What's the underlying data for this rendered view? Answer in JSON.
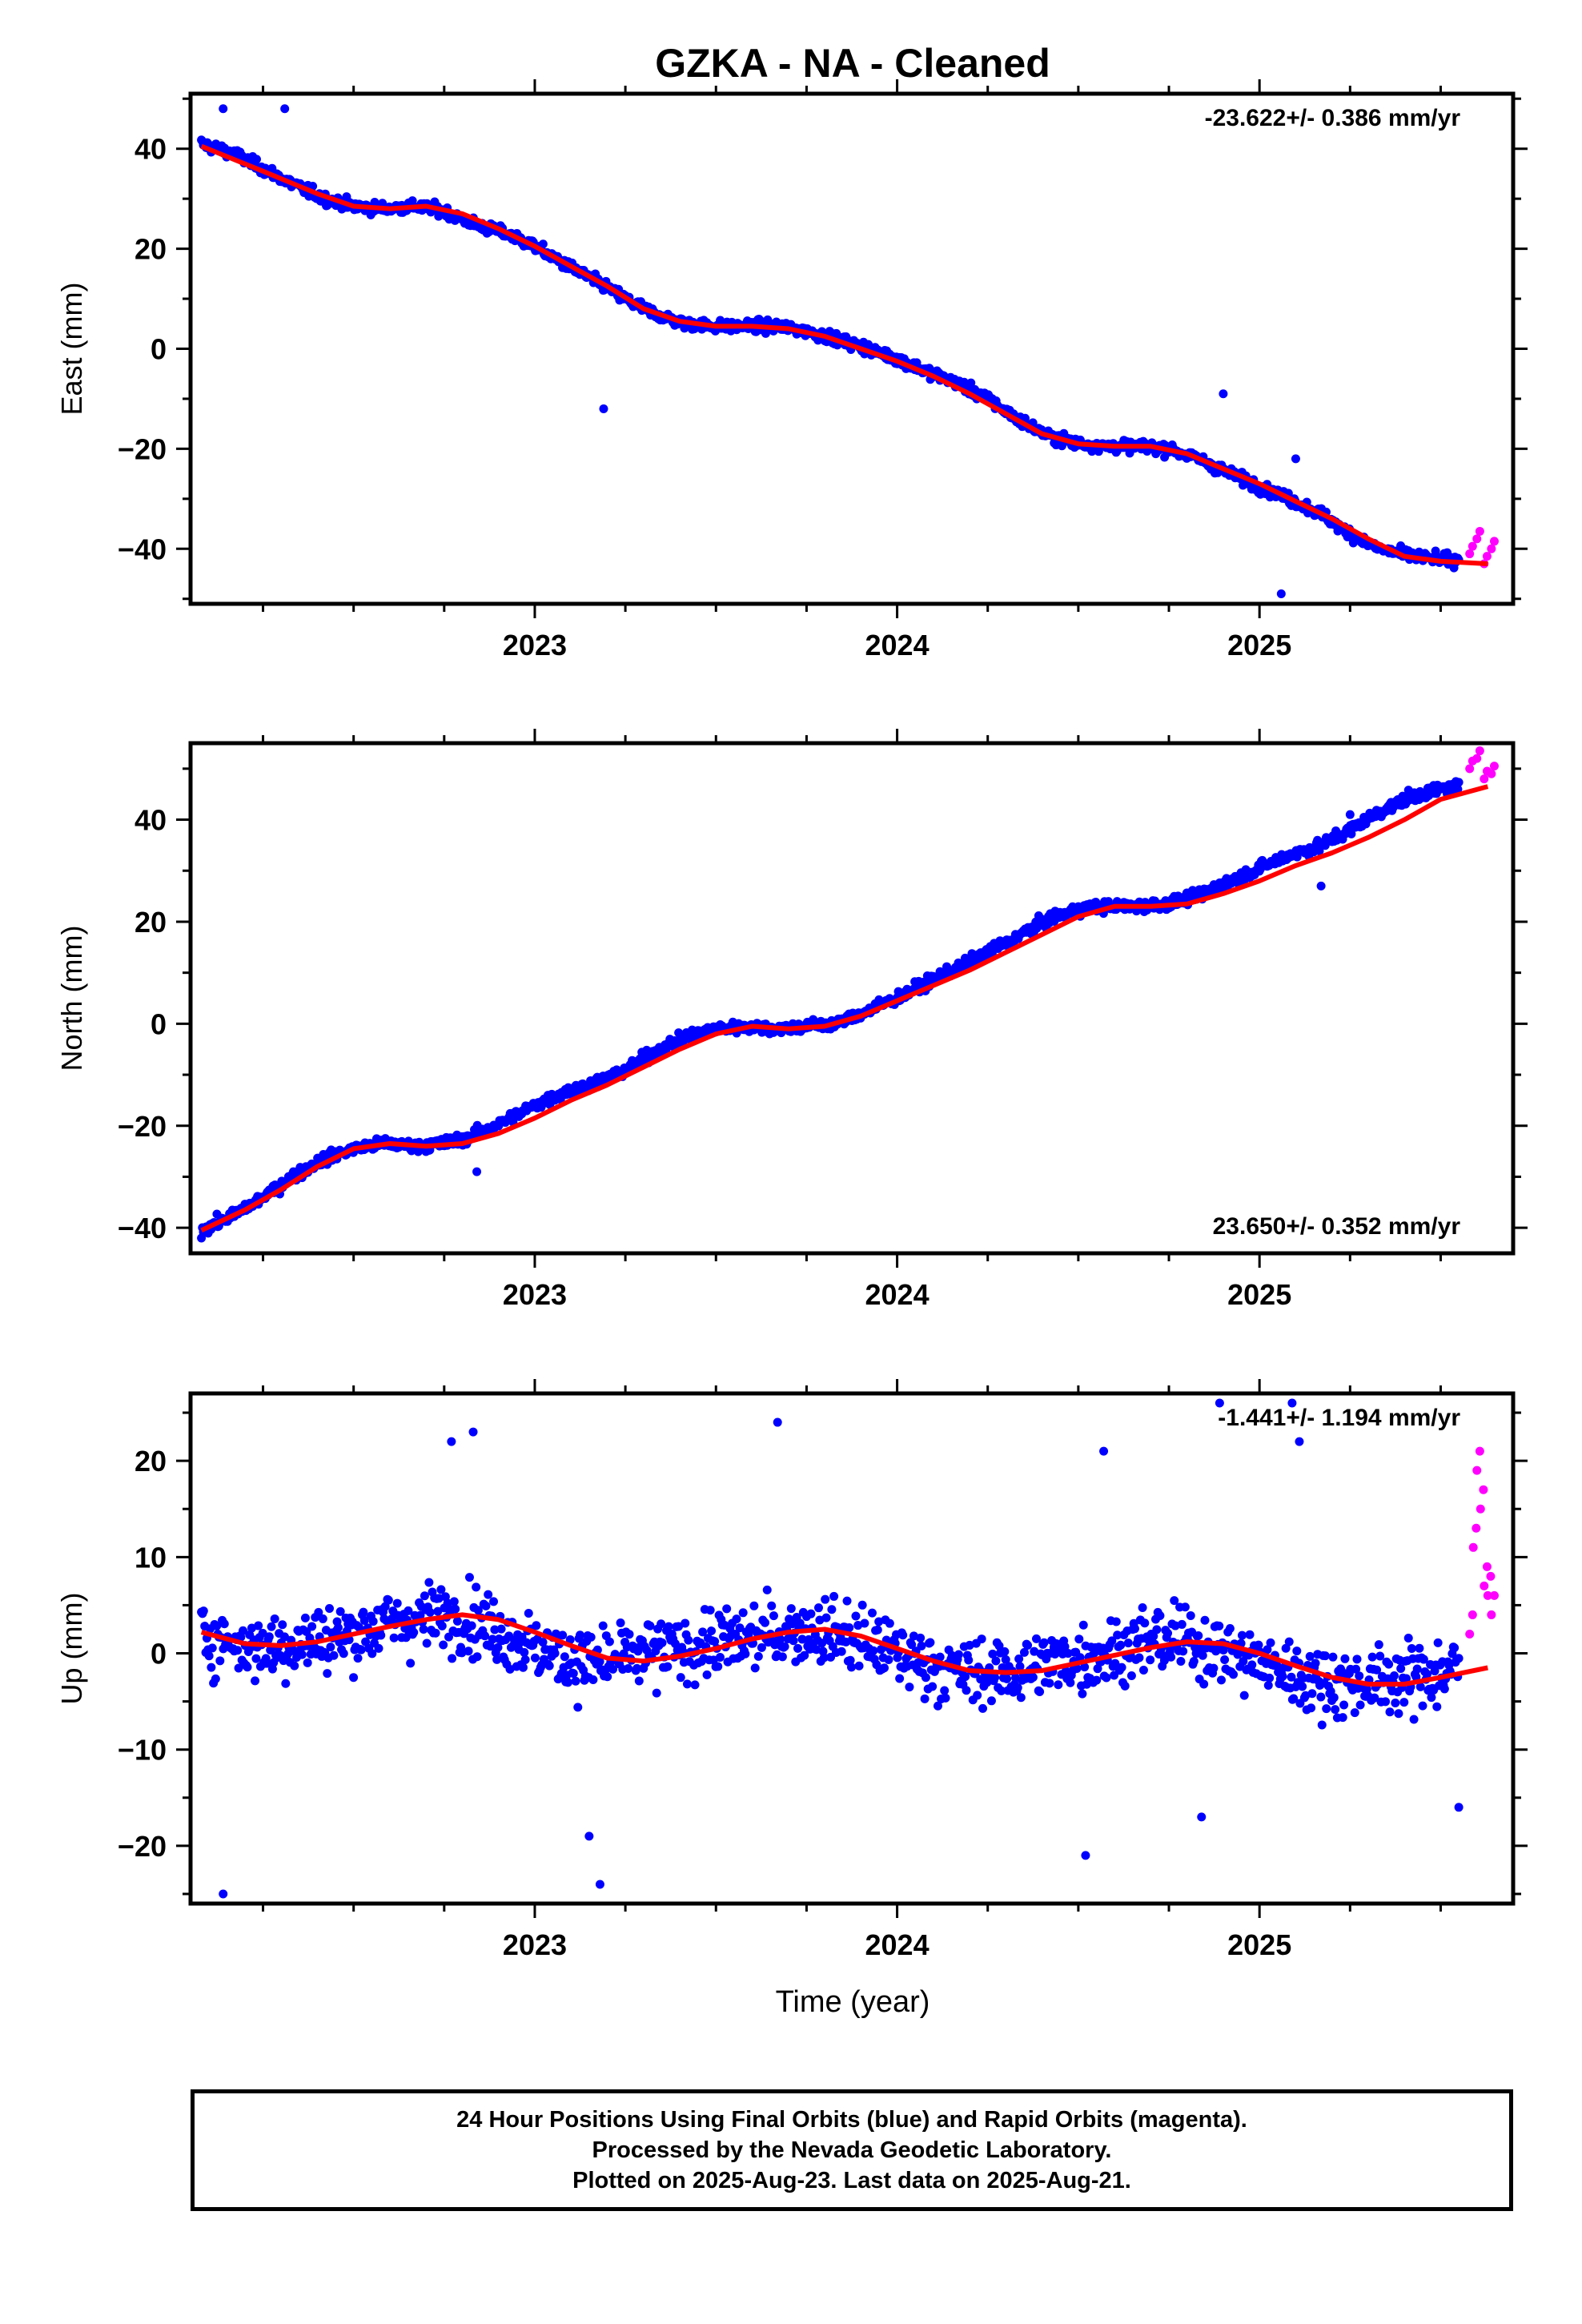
{
  "title": "GZKA  - NA - Cleaned",
  "x_axis_label": "Time (year)",
  "caption": {
    "line1": "24 Hour Positions Using Final Orbits (blue) and Rapid Orbits (magenta).",
    "line2": "Processed by the Nevada Geodetic Laboratory.",
    "line3": "Plotted on 2025-Aug-23. Last data on 2025-Aug-21."
  },
  "colors": {
    "final_orbits": "#0000ff",
    "rapid_orbits": "#ff00ff",
    "model": "#ff0000",
    "frame": "#000000"
  },
  "chart_data": [
    {
      "type": "scatter",
      "component": "east",
      "ylabel": "East (mm)",
      "rate": "-23.622+/- 0.386 mm/yr",
      "rate_position": "top-right",
      "xlim": [
        2022.05,
        2025.7
      ],
      "ylim": [
        -51,
        51
      ],
      "xticks": [
        2023,
        2024,
        2025
      ],
      "yticks": [
        -40,
        -20,
        0,
        20,
        40
      ],
      "grid": false,
      "series": [
        {
          "name": "Final Orbits",
          "color": "#0000ff",
          "x": [
            2022.08,
            2022.17,
            2022.25,
            2022.33,
            2022.42,
            2022.5,
            2022.58,
            2022.67,
            2022.75,
            2022.83,
            2022.92,
            2023.0,
            2023.08,
            2023.17,
            2023.25,
            2023.33,
            2023.42,
            2023.5,
            2023.58,
            2023.67,
            2023.75,
            2023.83,
            2023.92,
            2024.0,
            2024.08,
            2024.17,
            2024.25,
            2024.33,
            2024.42,
            2024.5,
            2024.58,
            2024.67,
            2024.75,
            2024.83,
            2024.92,
            2025.0,
            2025.08,
            2025.17,
            2025.25,
            2025.33,
            2025.42,
            2025.5,
            2025.55
          ],
          "y": [
            41,
            39,
            36,
            33,
            30,
            28.5,
            28,
            28.5,
            27.5,
            25,
            23,
            20.5,
            17,
            13.5,
            10,
            7,
            5,
            4.5,
            4.5,
            4.5,
            3.5,
            2,
            0,
            -2,
            -4.5,
            -7,
            -10,
            -14,
            -17.5,
            -19,
            -19.5,
            -19.5,
            -20,
            -22,
            -25,
            -27.5,
            -30,
            -33,
            -37,
            -40,
            -41.5,
            -42,
            -42.5
          ]
        },
        {
          "name": "Rapid Orbits",
          "color": "#ff00ff",
          "x": [
            2025.58,
            2025.6,
            2025.62,
            2025.64
          ],
          "y": [
            -41,
            -38,
            -43,
            -40
          ]
        }
      ],
      "outliers": {
        "x": [
          2022.14,
          2022.31,
          2023.19,
          2024.9,
          2025.06,
          2025.1
        ],
        "y": [
          48,
          48,
          -12,
          -9,
          -49,
          -22
        ]
      },
      "model": {
        "x": [
          2022.08,
          2022.25,
          2022.4,
          2022.5,
          2022.6,
          2022.7,
          2022.8,
          2022.9,
          2023.0,
          2023.1,
          2023.2,
          2023.3,
          2023.4,
          2023.5,
          2023.6,
          2023.7,
          2023.8,
          2023.9,
          2024.0,
          2024.1,
          2024.2,
          2024.3,
          2024.4,
          2024.5,
          2024.6,
          2024.7,
          2024.8,
          2024.9,
          2025.0,
          2025.1,
          2025.2,
          2025.3,
          2025.4,
          2025.5,
          2025.63
        ],
        "y": [
          40.5,
          35.5,
          31,
          28.5,
          28,
          28.5,
          27,
          24,
          20.5,
          16.5,
          12.5,
          8,
          5.5,
          4.5,
          4.5,
          4,
          2.5,
          0,
          -2.5,
          -5.5,
          -9,
          -13,
          -17,
          -19,
          -19.5,
          -19.5,
          -21,
          -24,
          -27,
          -30.5,
          -34,
          -38,
          -41.5,
          -42.5,
          -43
        ]
      }
    },
    {
      "type": "scatter",
      "component": "north",
      "ylabel": "North (mm)",
      "rate": "23.650+/- 0.352 mm/yr",
      "rate_position": "bottom-right",
      "xlim": [
        2022.05,
        2025.7
      ],
      "ylim": [
        -45,
        55
      ],
      "xticks": [
        2023,
        2024,
        2025
      ],
      "yticks": [
        -40,
        -20,
        0,
        20,
        40
      ],
      "grid": false,
      "series": [
        {
          "name": "Final Orbits",
          "color": "#0000ff",
          "x": [
            2022.08,
            2022.17,
            2022.25,
            2022.33,
            2022.42,
            2022.5,
            2022.58,
            2022.67,
            2022.75,
            2022.83,
            2022.92,
            2023.0,
            2023.08,
            2023.17,
            2023.25,
            2023.33,
            2023.42,
            2023.5,
            2023.58,
            2023.67,
            2023.75,
            2023.83,
            2023.92,
            2024.0,
            2024.08,
            2024.17,
            2024.25,
            2024.33,
            2024.42,
            2024.5,
            2024.58,
            2024.67,
            2024.75,
            2024.83,
            2024.92,
            2025.0,
            2025.08,
            2025.17,
            2025.25,
            2025.33,
            2025.42,
            2025.5,
            2025.55
          ],
          "y": [
            -40.5,
            -37.5,
            -34,
            -30,
            -26.5,
            -24.5,
            -23.5,
            -24,
            -23.5,
            -22,
            -19,
            -16,
            -13.5,
            -11.5,
            -9,
            -5.5,
            -2.5,
            -1,
            -0.5,
            -1,
            -0.5,
            0,
            2.5,
            5,
            8,
            11,
            14,
            17,
            20.5,
            22.5,
            23,
            23,
            23.5,
            25,
            28,
            30.5,
            33,
            35,
            38,
            41.5,
            44.5,
            46,
            46.5
          ]
        },
        {
          "name": "Rapid Orbits",
          "color": "#ff00ff",
          "x": [
            2025.58,
            2025.6,
            2025.62,
            2025.64
          ],
          "y": [
            50,
            52,
            48,
            49
          ]
        }
      ],
      "outliers": {
        "x": [
          2022.84,
          2024.2,
          2025.17,
          2025.25
        ],
        "y": [
          -29,
          12,
          27,
          41
        ]
      },
      "model": {
        "x": [
          2022.08,
          2022.2,
          2022.3,
          2022.4,
          2022.5,
          2022.6,
          2022.7,
          2022.8,
          2022.9,
          2023.0,
          2023.1,
          2023.2,
          2023.3,
          2023.4,
          2023.5,
          2023.6,
          2023.7,
          2023.8,
          2023.9,
          2024.0,
          2024.1,
          2024.2,
          2024.3,
          2024.4,
          2024.5,
          2024.6,
          2024.7,
          2024.8,
          2024.9,
          2025.0,
          2025.1,
          2025.2,
          2025.3,
          2025.4,
          2025.5,
          2025.63
        ],
        "y": [
          -40.5,
          -36.5,
          -32.5,
          -28,
          -24.5,
          -23.5,
          -24,
          -23.5,
          -21.5,
          -18.5,
          -15,
          -12,
          -8.5,
          -5,
          -2,
          -0.5,
          -1,
          -0.5,
          1.5,
          4.5,
          7.5,
          10.5,
          14,
          17.5,
          21,
          23,
          23,
          23.5,
          25.5,
          28,
          31,
          33.5,
          36.5,
          40,
          44,
          46.5
        ]
      }
    },
    {
      "type": "scatter",
      "component": "up",
      "ylabel": "Up (mm)",
      "xlabel": "Time (year)",
      "rate": "-1.441+/- 1.194 mm/yr",
      "rate_position": "top-right",
      "xlim": [
        2022.05,
        2025.7
      ],
      "ylim": [
        -26,
        27
      ],
      "xticks": [
        2023,
        2024,
        2025
      ],
      "yticks": [
        -20,
        -10,
        0,
        10,
        20
      ],
      "grid": false,
      "series": [
        {
          "name": "Final Orbits",
          "color": "#0000ff",
          "x": [
            2022.08,
            2022.17,
            2022.25,
            2022.33,
            2022.42,
            2022.5,
            2022.58,
            2022.67,
            2022.75,
            2022.83,
            2022.92,
            2023.0,
            2023.08,
            2023.17,
            2023.25,
            2023.33,
            2023.42,
            2023.5,
            2023.58,
            2023.67,
            2023.75,
            2023.83,
            2023.92,
            2024.0,
            2024.08,
            2024.17,
            2024.25,
            2024.33,
            2024.42,
            2024.5,
            2024.58,
            2024.67,
            2024.75,
            2024.83,
            2024.92,
            2025.0,
            2025.08,
            2025.17,
            2025.25,
            2025.33,
            2025.42,
            2025.5,
            2025.55
          ],
          "y": [
            2,
            1,
            0.5,
            1,
            1.5,
            2,
            3,
            3.5,
            4,
            3.5,
            2,
            0.5,
            -0.5,
            -1,
            -0.5,
            0,
            0.5,
            1,
            1.5,
            2,
            2.5,
            2,
            1,
            0,
            -1,
            -2,
            -2,
            -2,
            -1,
            -0.5,
            0,
            1,
            1.5,
            1,
            0,
            -1,
            -2,
            -3,
            -3,
            -3,
            -2.5,
            -2,
            -1.5
          ]
        },
        {
          "name": "Rapid Orbits",
          "color": "#ff00ff",
          "x": [
            2025.58,
            2025.59,
            2025.6,
            2025.61,
            2025.62,
            2025.63,
            2025.64
          ],
          "y": [
            2,
            11,
            19,
            15,
            7,
            6,
            4
          ]
        }
      ],
      "outliers": {
        "x": [
          2022.14,
          2022.77,
          2022.83,
          2023.15,
          2023.18,
          2023.67,
          2024.52,
          2024.57,
          2024.84,
          2024.89,
          2025.09,
          2025.11,
          2025.55
        ],
        "y": [
          -25,
          22,
          23,
          -19,
          -24,
          24,
          -21,
          21,
          -17,
          26,
          26,
          22,
          -16
        ]
      },
      "model": {
        "x": [
          2022.08,
          2022.2,
          2022.3,
          2022.4,
          2022.5,
          2022.6,
          2022.7,
          2022.8,
          2022.9,
          2023.0,
          2023.1,
          2023.2,
          2023.3,
          2023.4,
          2023.5,
          2023.6,
          2023.7,
          2023.8,
          2023.9,
          2024.0,
          2024.1,
          2024.2,
          2024.3,
          2024.4,
          2024.5,
          2024.6,
          2024.7,
          2024.8,
          2024.9,
          2025.0,
          2025.1,
          2025.2,
          2025.3,
          2025.4,
          2025.5,
          2025.63
        ],
        "y": [
          2.2,
          1,
          0.8,
          1.2,
          2,
          2.8,
          3.5,
          4,
          3.5,
          2.2,
          0.8,
          -0.5,
          -0.8,
          -0.3,
          0.5,
          1.5,
          2.2,
          2.5,
          1.8,
          0.5,
          -0.8,
          -1.8,
          -2,
          -1.8,
          -1,
          -0.2,
          0.6,
          1.2,
          1,
          0,
          -1.3,
          -2.5,
          -3.2,
          -3.2,
          -2.5,
          -1.5
        ]
      }
    }
  ]
}
